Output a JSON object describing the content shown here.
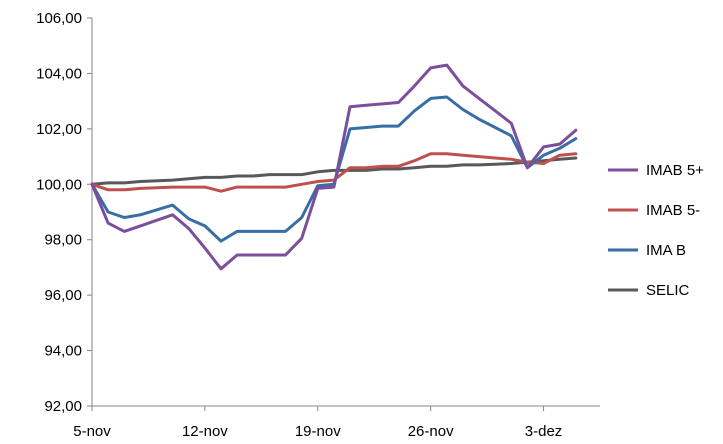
{
  "chart_data": {
    "type": "line",
    "title": "",
    "xlabel": "",
    "ylabel": "",
    "ylim": [
      92,
      106
    ],
    "y_ticks": [
      "92,00",
      "94,00",
      "96,00",
      "98,00",
      "100,00",
      "102,00",
      "104,00",
      "106,00"
    ],
    "x_ticks": [
      {
        "label": "5-nov",
        "day": 0
      },
      {
        "label": "12-nov",
        "day": 7
      },
      {
        "label": "19-nov",
        "day": 14
      },
      {
        "label": "26-nov",
        "day": 21
      },
      {
        "label": "3-dez",
        "day": 28
      }
    ],
    "x_range_days": [
      0,
      31.5
    ],
    "grid": false,
    "legend_position": "right",
    "series": [
      {
        "name": "IMAB 5+",
        "color": "#7B4F9D",
        "x": [
          0,
          1,
          2,
          3,
          5,
          6,
          7,
          8,
          9,
          10,
          11,
          12,
          13,
          14,
          15,
          16,
          17,
          18,
          19,
          20,
          21,
          22,
          23,
          24,
          25,
          26,
          27,
          28,
          29,
          30
        ],
        "y": [
          100.0,
          98.6,
          98.3,
          98.5,
          98.9,
          98.4,
          97.7,
          96.95,
          97.45,
          97.45,
          97.45,
          97.45,
          98.05,
          99.85,
          99.9,
          102.8,
          102.85,
          102.9,
          102.95,
          103.55,
          104.2,
          104.3,
          103.55,
          103.1,
          102.65,
          102.2,
          100.6,
          101.35,
          101.45,
          101.95
        ]
      },
      {
        "name": "IMAB 5-",
        "color": "#C0504D",
        "x": [
          0,
          1,
          2,
          3,
          5,
          6,
          7,
          8,
          9,
          10,
          11,
          12,
          13,
          14,
          15,
          16,
          17,
          18,
          19,
          20,
          21,
          22,
          23,
          24,
          25,
          26,
          27,
          28,
          29,
          30
        ],
        "y": [
          100.0,
          99.8,
          99.8,
          99.85,
          99.9,
          99.9,
          99.9,
          99.75,
          99.9,
          99.9,
          99.9,
          99.9,
          100.0,
          100.1,
          100.15,
          100.6,
          100.6,
          100.65,
          100.65,
          100.85,
          101.1,
          101.1,
          101.05,
          101.0,
          100.95,
          100.9,
          100.8,
          100.75,
          101.05,
          101.1
        ]
      },
      {
        "name": "IMA B",
        "color": "#376EA5",
        "x": [
          0,
          1,
          2,
          3,
          5,
          6,
          7,
          8,
          9,
          10,
          11,
          12,
          13,
          14,
          15,
          16,
          17,
          18,
          19,
          20,
          21,
          22,
          23,
          24,
          25,
          26,
          27,
          28,
          29,
          30
        ],
        "y": [
          100.0,
          99.0,
          98.8,
          98.9,
          99.25,
          98.75,
          98.5,
          97.95,
          98.3,
          98.3,
          98.3,
          98.3,
          98.8,
          99.95,
          100.0,
          102.0,
          102.05,
          102.1,
          102.1,
          102.65,
          103.1,
          103.15,
          102.7,
          102.35,
          102.05,
          101.75,
          100.6,
          101.05,
          101.3,
          101.65
        ]
      },
      {
        "name": "SELIC",
        "color": "#595959",
        "x": [
          0,
          1,
          2,
          3,
          5,
          6,
          7,
          8,
          9,
          10,
          11,
          12,
          13,
          14,
          15,
          16,
          17,
          18,
          19,
          20,
          21,
          22,
          23,
          24,
          25,
          26,
          27,
          28,
          29,
          30
        ],
        "y": [
          100.0,
          100.05,
          100.05,
          100.1,
          100.15,
          100.2,
          100.25,
          100.25,
          100.3,
          100.3,
          100.35,
          100.35,
          100.35,
          100.45,
          100.5,
          100.5,
          100.5,
          100.55,
          100.55,
          100.6,
          100.65,
          100.65,
          100.7,
          100.7,
          100.72,
          100.75,
          100.8,
          100.85,
          100.9,
          100.95
        ]
      }
    ]
  }
}
